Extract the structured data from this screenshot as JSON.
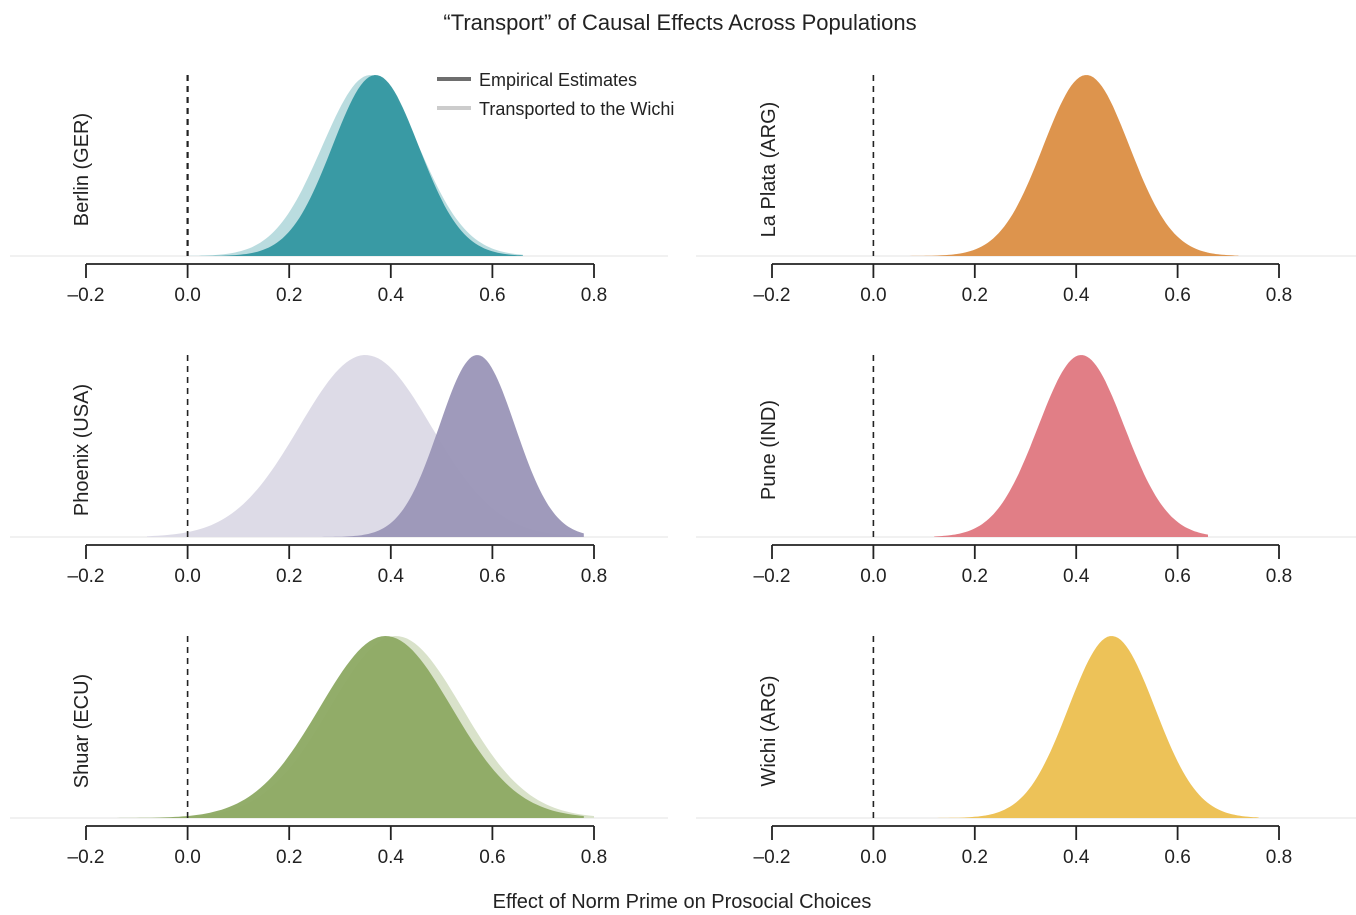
{
  "chart_data": {
    "type": "area",
    "title": "“Transport” of Causal Effects Across Populations",
    "xlabel": "Effect of Norm Prime on Prosocial Choices",
    "xlim": [
      -0.2,
      0.8
    ],
    "xticks": [
      -0.2,
      0.0,
      0.2,
      0.4,
      0.6,
      0.8
    ],
    "tick_labels": [
      "–0.2",
      "0.0",
      "0.2",
      "0.4",
      "0.6",
      "0.8"
    ],
    "reference_line_x": 0.0,
    "legend": {
      "placement": "top",
      "entries": [
        {
          "label": "Empirical Estimates",
          "color": "#6e6e6e"
        },
        {
          "label": "Transported to the Wichi",
          "color": "#cccccc"
        }
      ]
    },
    "panels": [
      {
        "name": "Berlin (GER)",
        "color": "#3497a1",
        "empirical": {
          "mean": 0.37,
          "sd": 0.085,
          "lo": 0.0,
          "hi": 0.66
        },
        "transported": {
          "mean": 0.36,
          "sd": 0.095,
          "lo": 0.0,
          "hi": 0.66
        }
      },
      {
        "name": "La Plata (ARG)",
        "color": "#dc9148",
        "empirical": {
          "mean": 0.42,
          "sd": 0.085,
          "lo": 0.06,
          "hi": 0.72
        },
        "transported": {
          "mean": 0.42,
          "sd": 0.085,
          "lo": 0.06,
          "hi": 0.72
        }
      },
      {
        "name": "Phoenix (USA)",
        "color": "#9b96b8",
        "empirical": {
          "mean": 0.57,
          "sd": 0.075,
          "lo": 0.26,
          "hi": 0.78
        },
        "transported": {
          "mean": 0.35,
          "sd": 0.13,
          "lo": -0.08,
          "hi": 0.76
        }
      },
      {
        "name": "Pune (IND)",
        "color": "#e07a82",
        "empirical": {
          "mean": 0.41,
          "sd": 0.085,
          "lo": 0.12,
          "hi": 0.66
        },
        "transported": {
          "mean": 0.41,
          "sd": 0.085,
          "lo": 0.12,
          "hi": 0.66
        }
      },
      {
        "name": "Shuar (ECU)",
        "color": "#8eaa64",
        "empirical": {
          "mean": 0.39,
          "sd": 0.13,
          "lo": -0.14,
          "hi": 0.78
        },
        "transported": {
          "mean": 0.41,
          "sd": 0.13,
          "lo": -0.14,
          "hi": 0.8
        }
      },
      {
        "name": "Wichi (ARG)",
        "color": "#ecc053",
        "empirical": {
          "mean": 0.47,
          "sd": 0.085,
          "lo": 0.12,
          "hi": 0.76
        },
        "transported": {
          "mean": 0.47,
          "sd": 0.085,
          "lo": 0.12,
          "hi": 0.76
        }
      }
    ]
  }
}
